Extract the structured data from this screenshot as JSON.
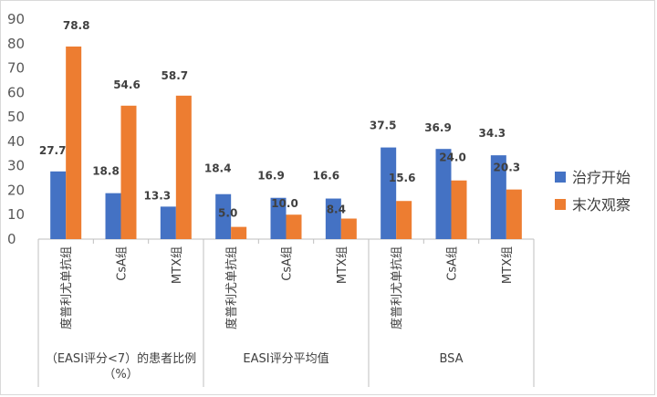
{
  "chart_data": {
    "type": "bar",
    "ylim": [
      0,
      90
    ],
    "yticks": [
      0,
      10,
      20,
      30,
      40,
      50,
      60,
      70,
      80,
      90
    ],
    "legend_position": "right",
    "grid": false,
    "groups": [
      {
        "label": "（EASI评分<7）的患者比例（%）",
        "categories": [
          "度普利尤单抗组",
          "CsA组",
          "MTX组"
        ]
      },
      {
        "label": "EASI评分平均值",
        "categories": [
          "度普利尤单抗组",
          "CsA组",
          "MTX组"
        ]
      },
      {
        "label": "BSA",
        "categories": [
          "度普利尤单抗组",
          "CsA组",
          "MTX组"
        ]
      }
    ],
    "series": [
      {
        "name": "治疗开始",
        "color": "#4472C4",
        "values": [
          27.7,
          18.8,
          13.3,
          18.4,
          16.9,
          16.6,
          37.5,
          36.9,
          34.3
        ],
        "labels": [
          "27.7",
          "18.8",
          "13.3",
          "18.4",
          "16.9",
          "16.6",
          "37.5",
          "36.9",
          "34.3"
        ]
      },
      {
        "name": "末次观察",
        "color": "#ED7D31",
        "values": [
          78.8,
          54.6,
          58.7,
          5.0,
          10.0,
          8.4,
          15.6,
          24.0,
          20.3
        ],
        "labels": [
          "78.8",
          "54.6",
          "58.7",
          "5.0",
          "10.0",
          "8.4",
          "15.6",
          "24.0",
          "20.3"
        ]
      }
    ]
  }
}
